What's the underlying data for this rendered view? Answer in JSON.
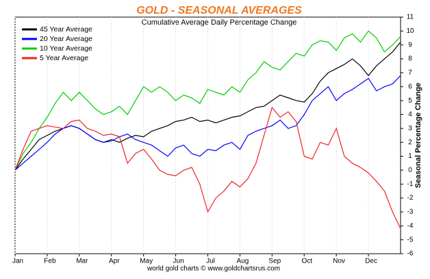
{
  "chart_data": {
    "type": "line",
    "title": "GOLD - SEASONAL AVERAGES",
    "subtitle": "Cumulative Average Daily Percentage Change",
    "y_axis_label": "Seasonal Percentage Change",
    "footer": "world gold charts © www.goldchartsrus.com",
    "categories": [
      "Jan",
      null,
      null,
      null,
      "Feb",
      null,
      null,
      null,
      "Mar",
      null,
      null,
      null,
      "Apr",
      null,
      null,
      null,
      "May",
      null,
      null,
      null,
      "Jun",
      null,
      null,
      null,
      "Jul",
      null,
      null,
      null,
      "Aug",
      null,
      null,
      null,
      "Sep",
      null,
      null,
      null,
      "Oct",
      null,
      null,
      null,
      "Nov",
      null,
      null,
      null,
      "Dec",
      null,
      null,
      null,
      null
    ],
    "series": [
      {
        "name": "45 Year Average",
        "color": "#000000",
        "values": [
          0,
          0.8,
          1.5,
          2.2,
          2.5,
          2.8,
          3.0,
          3.2,
          3.0,
          2.6,
          2.2,
          2.0,
          2.2,
          2.0,
          2.3,
          2.5,
          2.4,
          2.8,
          3.0,
          3.2,
          3.5,
          3.6,
          3.8,
          3.5,
          3.6,
          3.4,
          3.6,
          3.8,
          3.9,
          4.2,
          4.5,
          4.6,
          5.0,
          5.4,
          5.2,
          5.0,
          4.9,
          5.5,
          6.4,
          7.0,
          7.3,
          7.6,
          8.0,
          7.5,
          6.8,
          7.5,
          8.0,
          8.5,
          9.2
        ]
      },
      {
        "name": "20 Year Average",
        "color": "#0000ff",
        "values": [
          0,
          0.5,
          1.0,
          1.5,
          2.0,
          2.6,
          3.0,
          3.2,
          3.0,
          2.6,
          2.2,
          2.0,
          2.1,
          2.4,
          2.6,
          2.2,
          2.0,
          1.8,
          1.4,
          1.0,
          1.6,
          1.8,
          1.2,
          1.0,
          1.5,
          1.4,
          1.8,
          2.0,
          1.5,
          2.5,
          2.8,
          3.0,
          3.2,
          3.6,
          3.0,
          3.2,
          4.0,
          5.0,
          5.5,
          6.0,
          5.0,
          5.5,
          5.8,
          6.2,
          6.6,
          5.7,
          6.0,
          6.2,
          6.8
        ]
      },
      {
        "name": "10 Year Average",
        "color": "#00cc00",
        "values": [
          0,
          1.2,
          2.0,
          3.0,
          3.8,
          4.8,
          5.6,
          5.0,
          5.6,
          5.0,
          4.4,
          4.0,
          4.2,
          4.6,
          4.0,
          5.0,
          6.0,
          5.6,
          6.0,
          5.6,
          5.0,
          5.4,
          5.2,
          4.8,
          5.8,
          5.6,
          5.4,
          6.0,
          5.6,
          6.5,
          7.0,
          7.8,
          7.4,
          7.2,
          7.8,
          8.4,
          8.2,
          9.0,
          9.3,
          9.2,
          8.6,
          9.5,
          9.8,
          9.2,
          10.0,
          9.5,
          8.5,
          9.0,
          9.6
        ]
      },
      {
        "name": "5 Year Average",
        "color": "#ee2222",
        "values": [
          0,
          1.5,
          2.8,
          3.0,
          3.2,
          3.1,
          3.0,
          3.5,
          3.6,
          3.0,
          2.8,
          2.5,
          2.6,
          2.4,
          0.5,
          1.2,
          1.5,
          0.8,
          0,
          -0.3,
          -0.4,
          0,
          0.2,
          -1.0,
          -3.0,
          -2.0,
          -1.5,
          -0.8,
          -1.2,
          -0.6,
          0.5,
          2.5,
          4.5,
          3.8,
          4.2,
          3.5,
          1.0,
          0.8,
          2.0,
          1.8,
          3.0,
          1.0,
          0.5,
          0.2,
          -0.2,
          -0.8,
          -1.5,
          -3.0,
          -4.2
        ]
      }
    ],
    "ylim": [
      -6,
      11
    ],
    "yticks": [
      -6,
      -5,
      -4,
      -3,
      -2,
      -1,
      0,
      1,
      2,
      3,
      4,
      5,
      6,
      7,
      8,
      9,
      10,
      11
    ],
    "grid": true,
    "legend": "top-left"
  }
}
